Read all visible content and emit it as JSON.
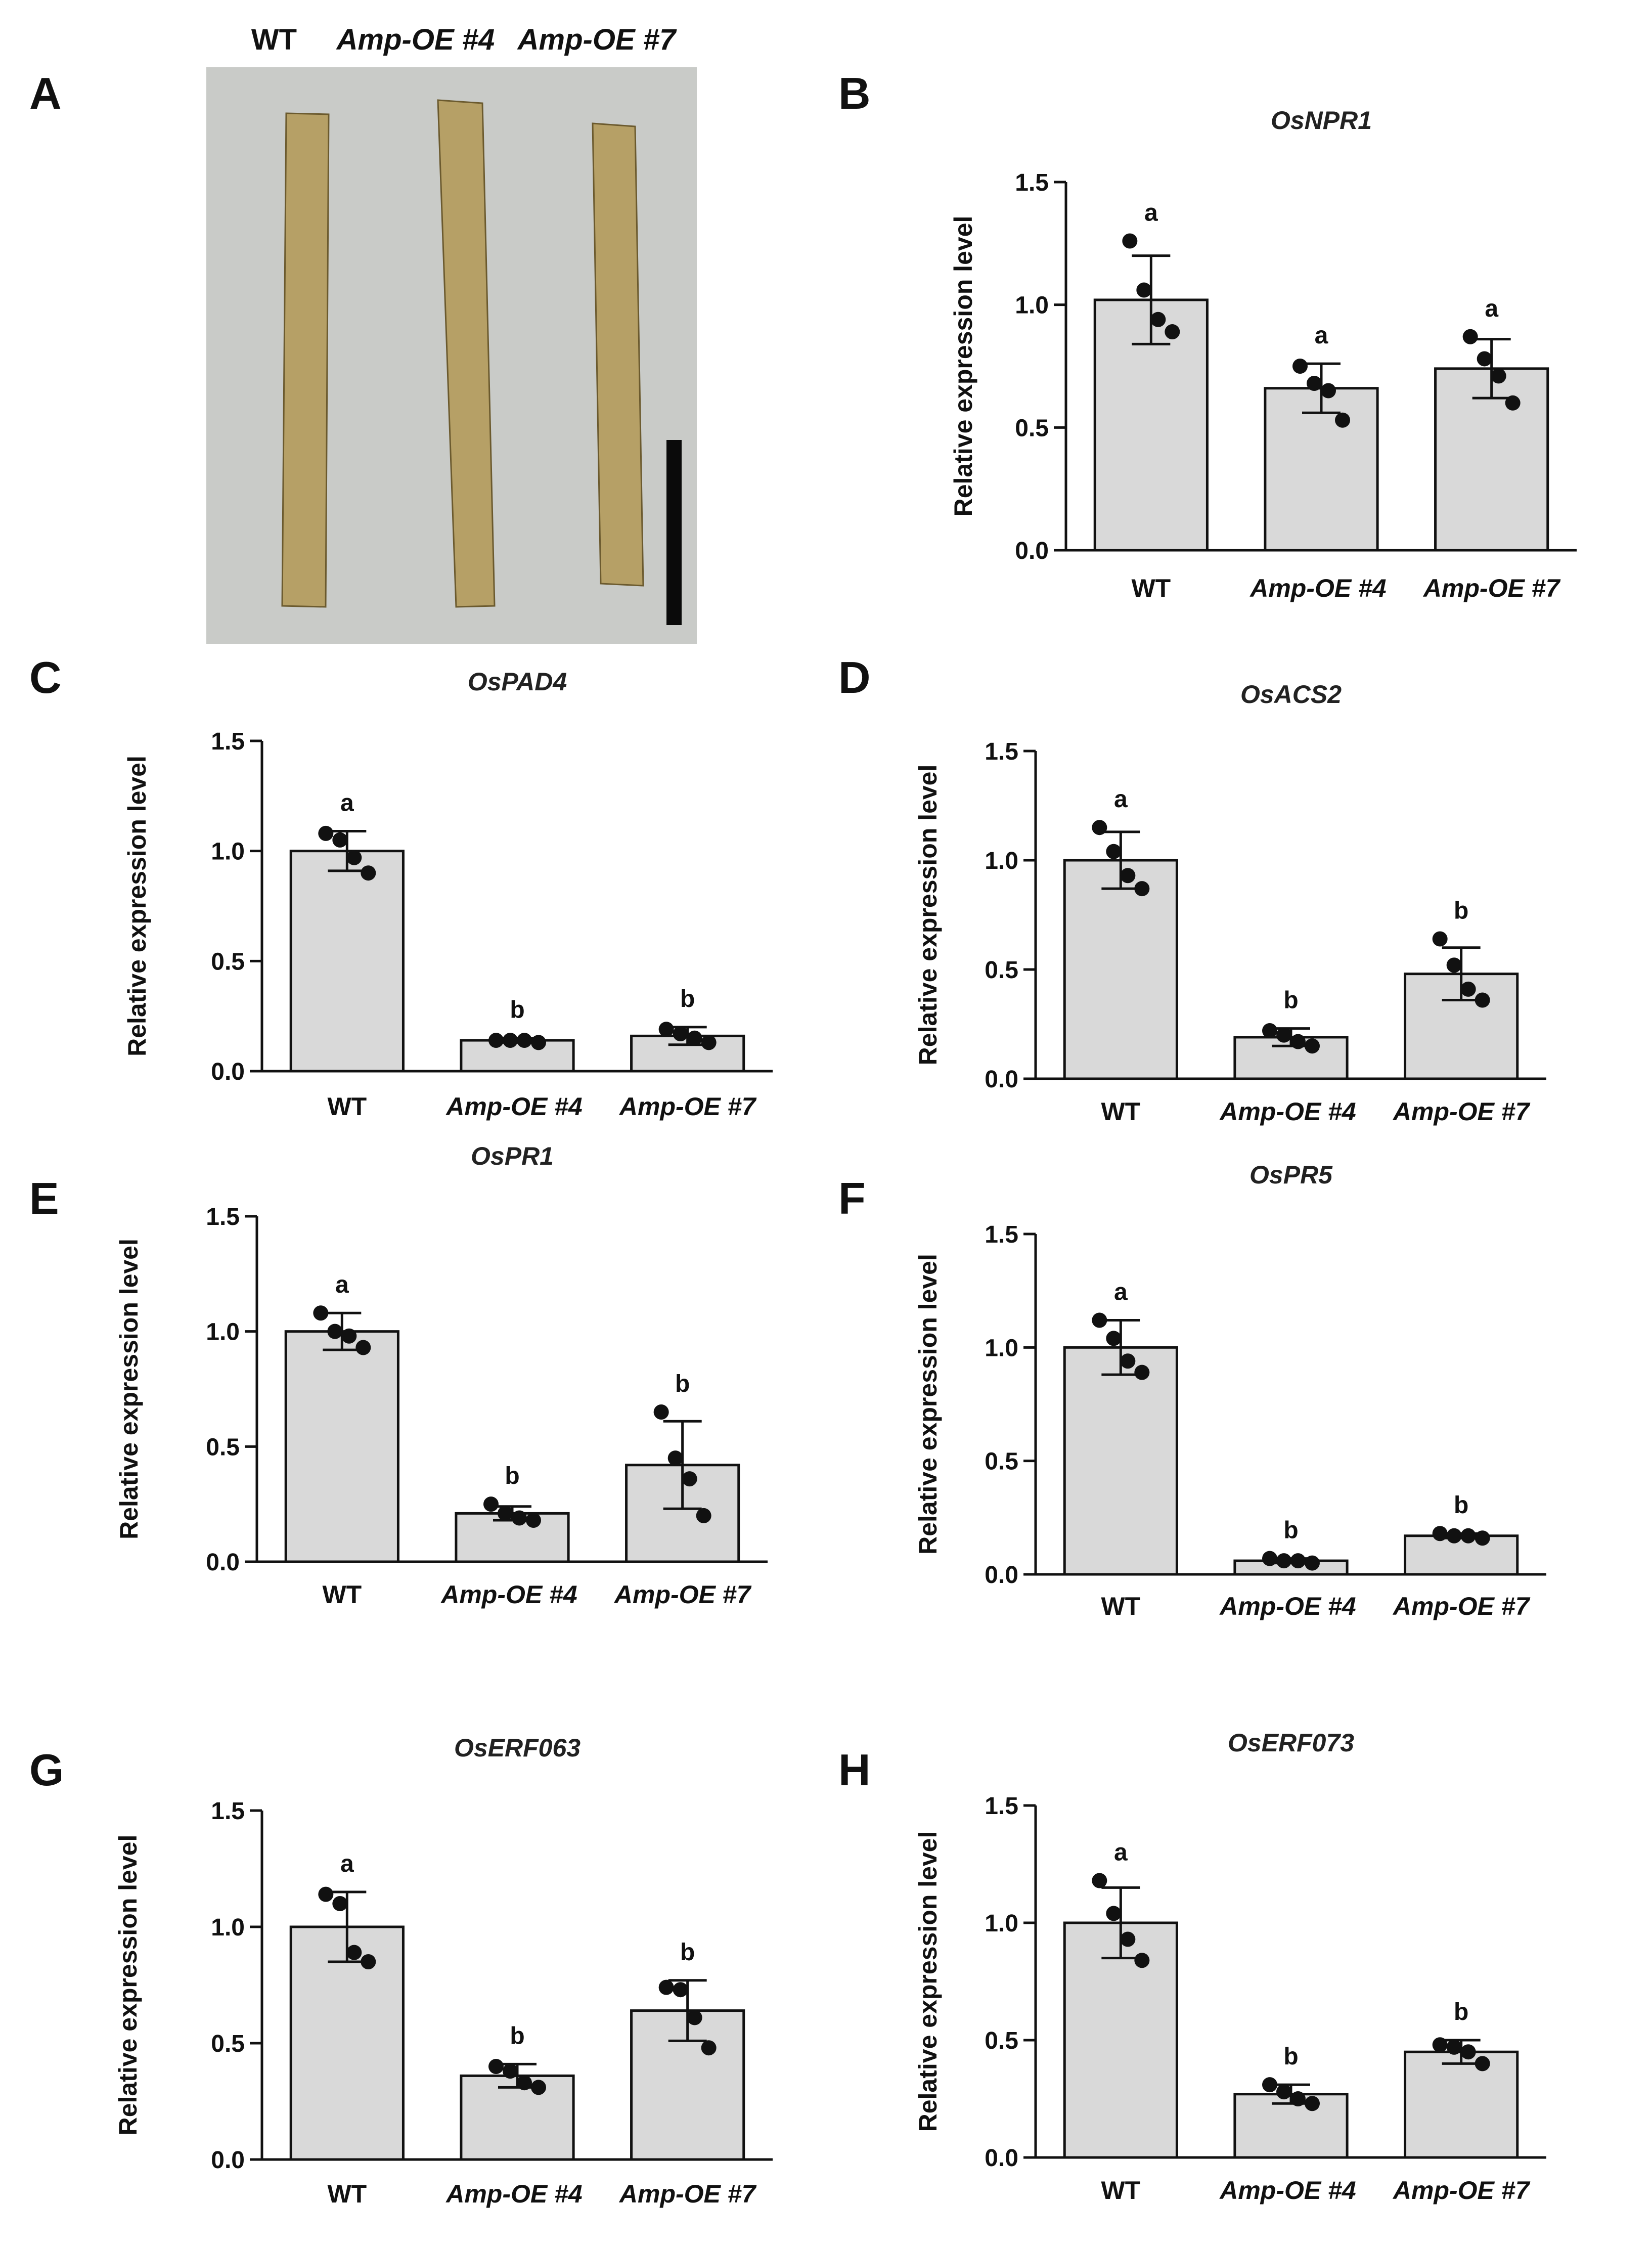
{
  "figure": {
    "panel_letters": [
      "A",
      "B",
      "C",
      "D",
      "E",
      "F",
      "G",
      "H"
    ]
  },
  "photo_panel": {
    "labels": [
      "WT",
      "Amp-OE #4",
      "Amp-OE #7"
    ],
    "colors": {
      "background": "#c9cbc8",
      "leaf": "#b6a066",
      "scale_bar": "#0a0a0a"
    }
  },
  "colors": {
    "bar_fill": "#d9d9d9",
    "bar_stroke": "#111111",
    "point": "#111111"
  },
  "chart_data": [
    {
      "panel": "B",
      "type": "bar",
      "title": "OsNPR1",
      "xlabel": "",
      "ylabel": "Relative expression level",
      "categories": [
        "WT",
        "Amp-OE #4",
        "Amp-OE #7"
      ],
      "ylim": [
        0,
        1.5
      ],
      "yticks": [
        "0.0",
        "0.5",
        "1.0",
        "1.5"
      ],
      "values": [
        1.02,
        0.66,
        0.74
      ],
      "errors": [
        0.18,
        0.1,
        0.12
      ],
      "points": [
        [
          1.26,
          1.06,
          0.94,
          0.89
        ],
        [
          0.75,
          0.68,
          0.65,
          0.53
        ],
        [
          0.87,
          0.78,
          0.71,
          0.6
        ]
      ],
      "letters": [
        "a",
        "a",
        "a"
      ]
    },
    {
      "panel": "C",
      "type": "bar",
      "title": "OsPAD4",
      "xlabel": "",
      "ylabel": "Relative expression level",
      "categories": [
        "WT",
        "Amp-OE #4",
        "Amp-OE #7"
      ],
      "ylim": [
        0,
        1.5
      ],
      "yticks": [
        "0.0",
        "0.5",
        "1.0",
        "1.5"
      ],
      "values": [
        1.0,
        0.14,
        0.16
      ],
      "errors": [
        0.09,
        0.01,
        0.04
      ],
      "points": [
        [
          1.08,
          1.05,
          0.97,
          0.9
        ],
        [
          0.14,
          0.14,
          0.14,
          0.13
        ],
        [
          0.19,
          0.17,
          0.15,
          0.13
        ]
      ],
      "letters": [
        "a",
        "b",
        "b"
      ]
    },
    {
      "panel": "D",
      "type": "bar",
      "title": "OsACS2",
      "xlabel": "",
      "ylabel": "Relative expression level",
      "categories": [
        "WT",
        "Amp-OE #4",
        "Amp-OE #7"
      ],
      "ylim": [
        0,
        1.5
      ],
      "yticks": [
        "0.0",
        "0.5",
        "1.0",
        "1.5"
      ],
      "values": [
        1.0,
        0.19,
        0.48
      ],
      "errors": [
        0.13,
        0.04,
        0.12
      ],
      "points": [
        [
          1.15,
          1.04,
          0.93,
          0.87
        ],
        [
          0.22,
          0.2,
          0.17,
          0.15
        ],
        [
          0.64,
          0.52,
          0.41,
          0.36
        ]
      ],
      "letters": [
        "a",
        "b",
        "b"
      ]
    },
    {
      "panel": "E",
      "type": "bar",
      "title": "OsPR1",
      "xlabel": "",
      "ylabel": "Relative expression level",
      "categories": [
        "WT",
        "Amp-OE #4",
        "Amp-OE #7"
      ],
      "ylim": [
        0,
        1.5
      ],
      "yticks": [
        "0.0",
        "0.5",
        "1.0",
        "1.5"
      ],
      "values": [
        1.0,
        0.21,
        0.42
      ],
      "errors": [
        0.08,
        0.03,
        0.19
      ],
      "points": [
        [
          1.08,
          1.0,
          0.98,
          0.93
        ],
        [
          0.25,
          0.21,
          0.19,
          0.18
        ],
        [
          0.65,
          0.45,
          0.36,
          0.2
        ]
      ],
      "letters": [
        "a",
        "b",
        "b"
      ]
    },
    {
      "panel": "F",
      "type": "bar",
      "title": "OsPR5",
      "xlabel": "",
      "ylabel": "Relative expression level",
      "categories": [
        "WT",
        "Amp-OE #4",
        "Amp-OE #7"
      ],
      "ylim": [
        0,
        1.5
      ],
      "yticks": [
        "0.0",
        "0.5",
        "1.0",
        "1.5"
      ],
      "values": [
        1.0,
        0.06,
        0.17
      ],
      "errors": [
        0.12,
        0.01,
        0.01
      ],
      "points": [
        [
          1.12,
          1.04,
          0.94,
          0.89
        ],
        [
          0.07,
          0.06,
          0.06,
          0.05
        ],
        [
          0.18,
          0.17,
          0.17,
          0.16
        ]
      ],
      "letters": [
        "a",
        "b",
        "b"
      ]
    },
    {
      "panel": "G",
      "type": "bar",
      "title": "OsERF063",
      "xlabel": "",
      "ylabel": "Relative expression level",
      "categories": [
        "WT",
        "Amp-OE #4",
        "Amp-OE #7"
      ],
      "ylim": [
        0,
        1.5
      ],
      "yticks": [
        "0.0",
        "0.5",
        "1.0",
        "1.5"
      ],
      "values": [
        1.0,
        0.36,
        0.64
      ],
      "errors": [
        0.15,
        0.05,
        0.13
      ],
      "points": [
        [
          1.14,
          1.1,
          0.89,
          0.85
        ],
        [
          0.4,
          0.38,
          0.33,
          0.31
        ],
        [
          0.74,
          0.73,
          0.61,
          0.48
        ]
      ],
      "letters": [
        "a",
        "b",
        "b"
      ]
    },
    {
      "panel": "H",
      "type": "bar",
      "title": "OsERF073",
      "xlabel": "",
      "ylabel": "Relative expression level",
      "categories": [
        "WT",
        "Amp-OE #4",
        "Amp-OE #7"
      ],
      "ylim": [
        0,
        1.5
      ],
      "yticks": [
        "0.0",
        "0.5",
        "1.0",
        "1.5"
      ],
      "values": [
        1.0,
        0.27,
        0.45
      ],
      "errors": [
        0.15,
        0.04,
        0.05
      ],
      "points": [
        [
          1.18,
          1.04,
          0.93,
          0.84
        ],
        [
          0.31,
          0.28,
          0.25,
          0.23
        ],
        [
          0.48,
          0.47,
          0.45,
          0.4
        ]
      ],
      "letters": [
        "a",
        "b",
        "b"
      ]
    }
  ]
}
